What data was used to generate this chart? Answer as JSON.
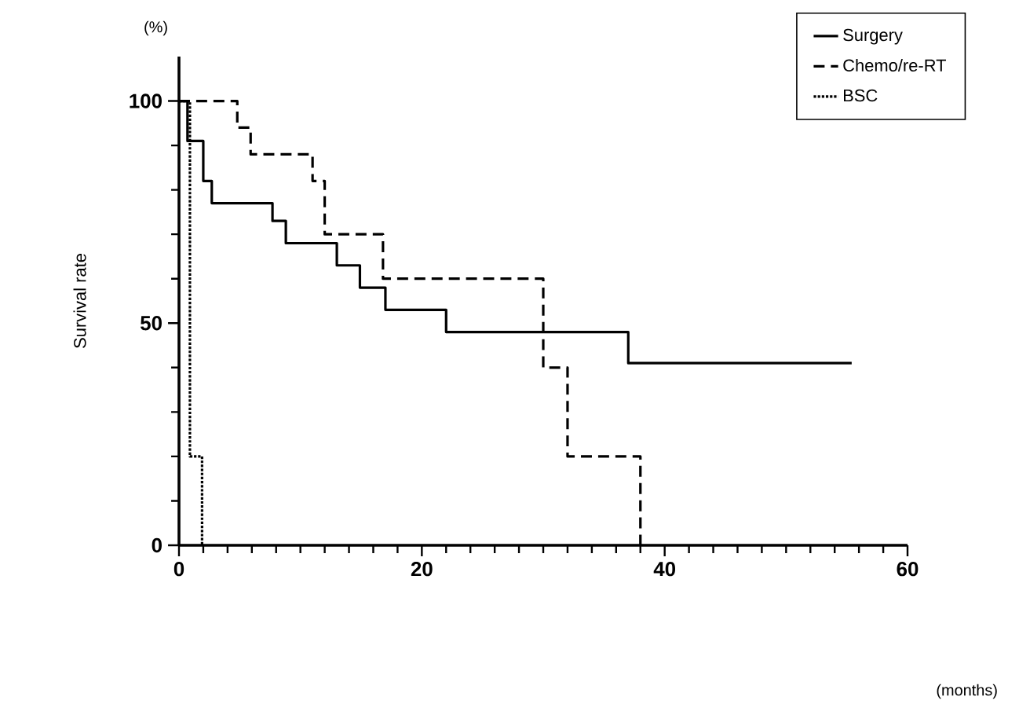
{
  "chart_data": {
    "type": "step",
    "ylabel": "Survival rate",
    "xlim": [
      0,
      60
    ],
    "ylim": [
      0,
      110
    ],
    "xticks": [
      0,
      20,
      40,
      60
    ],
    "yticks": [
      0,
      50,
      100
    ],
    "grid": false,
    "legend": "top right",
    "annotations": [
      "(%)",
      "(months)"
    ],
    "series": [
      {
        "name": "Surgery",
        "color": "#000000",
        "line_style": "solid",
        "x": [
          0,
          0.7,
          2,
          2.7,
          7.7,
          8.8,
          13,
          14.9,
          17,
          22,
          37,
          55.4
        ],
        "values": [
          100,
          91,
          82,
          77,
          73,
          68,
          63,
          58,
          53,
          48,
          41,
          41
        ]
      },
      {
        "name": "Chemo/re-RT",
        "color": "#000000",
        "line_style": "dashed",
        "x": [
          0,
          4.8,
          5.9,
          11,
          12,
          16.8,
          30,
          32,
          38
        ],
        "values": [
          100,
          94,
          88,
          82,
          70,
          60,
          40,
          20,
          0
        ]
      },
      {
        "name": "BSC",
        "color": "#000000",
        "line_style": "dotted",
        "x": [
          0,
          0.9,
          1.9
        ],
        "values": [
          100,
          20,
          0
        ]
      }
    ]
  }
}
